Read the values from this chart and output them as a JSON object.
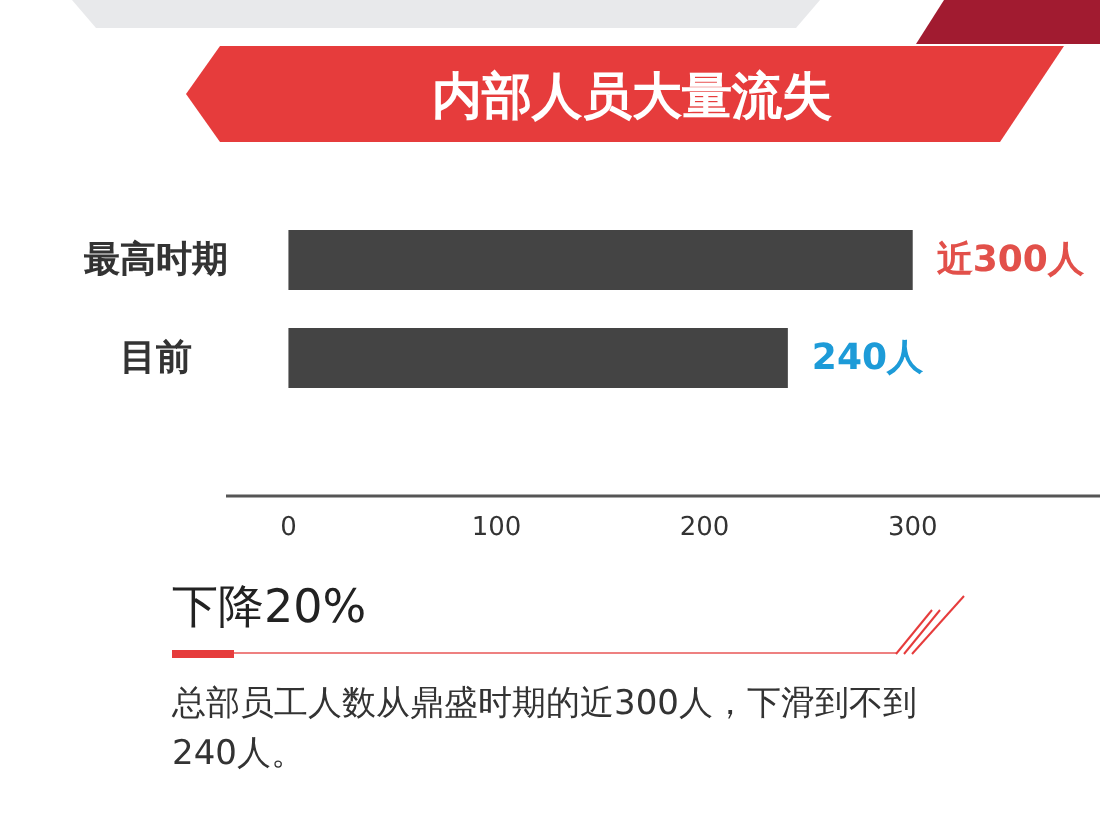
{
  "chart_data": {
    "type": "bar",
    "orientation": "horizontal",
    "title": "内部人员大量流失",
    "categories": [
      "最高时期",
      "目前"
    ],
    "values": [
      300,
      240
    ],
    "color": "#444444",
    "value_labels": [
      "近300人",
      "240人"
    ],
    "xlim": [
      -30,
      390
    ],
    "xticks": [
      0,
      100,
      200,
      300
    ],
    "annotations": [
      "下降20%",
      "总部员工人数从鼎盛时期的近300人，下滑到不到240人。"
    ]
  }
}
